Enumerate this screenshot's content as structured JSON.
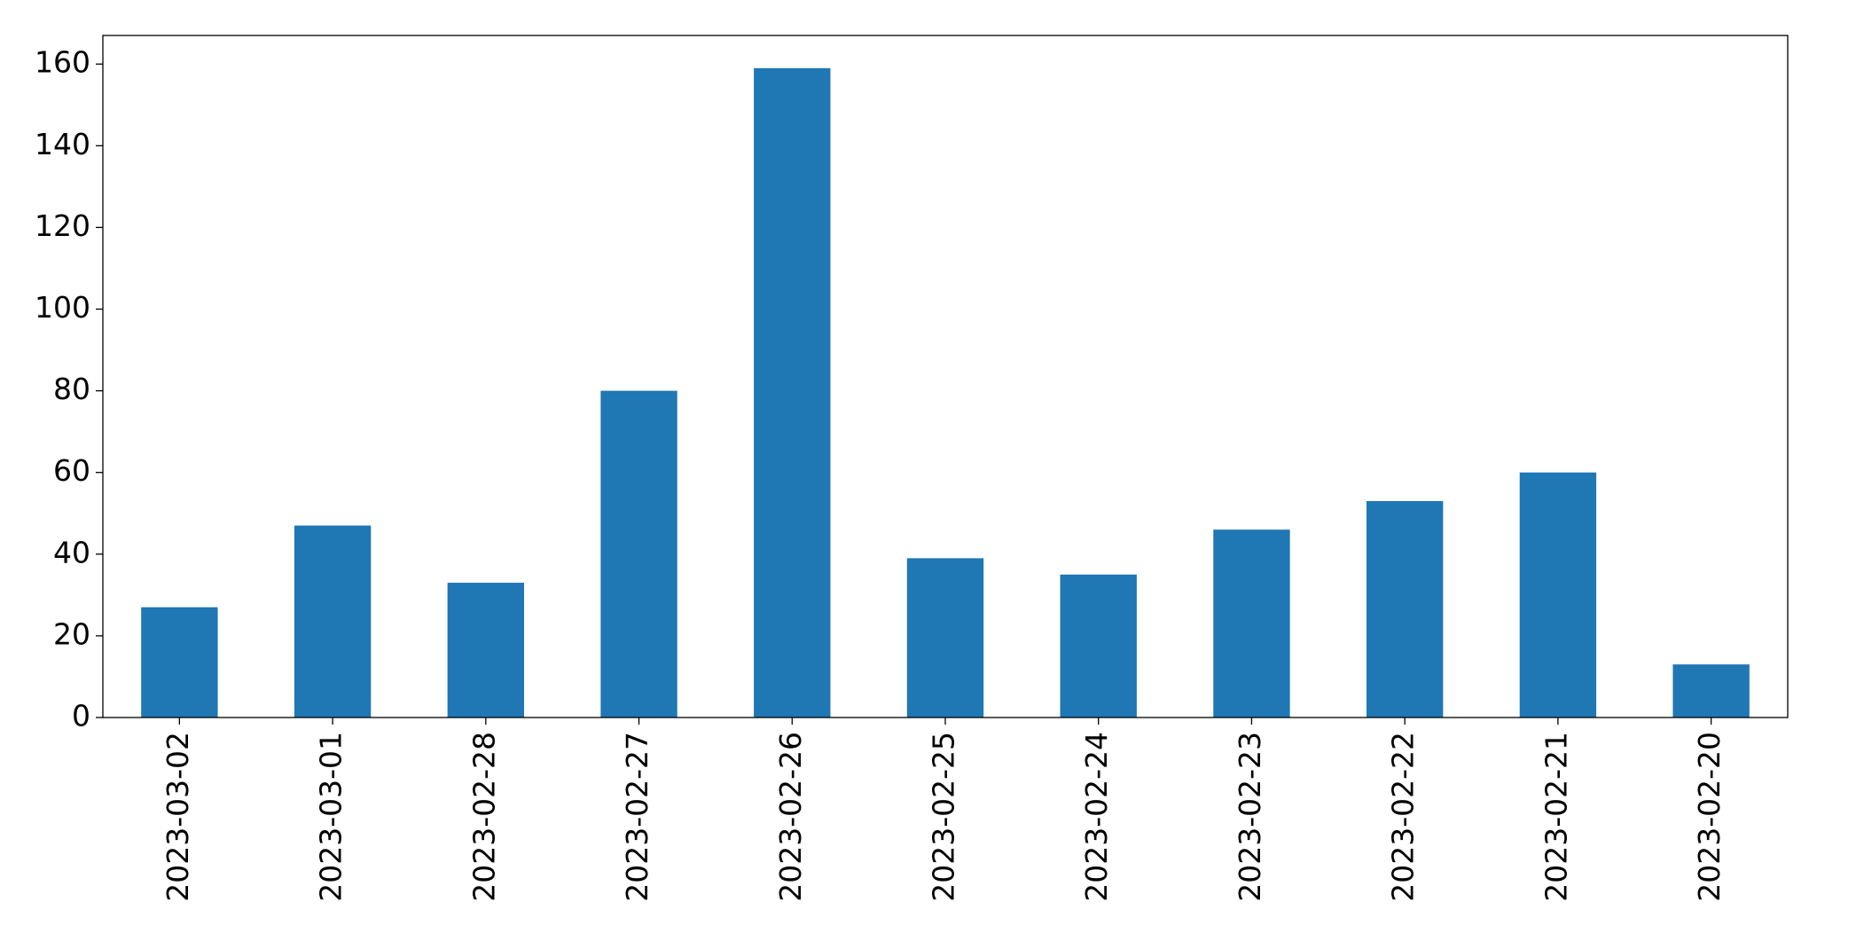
{
  "chart_data": {
    "type": "bar",
    "categories": [
      "2023-03-02",
      "2023-03-01",
      "2023-02-28",
      "2023-02-27",
      "2023-02-26",
      "2023-02-25",
      "2023-02-24",
      "2023-02-23",
      "2023-02-22",
      "2023-02-21",
      "2023-02-20"
    ],
    "values": [
      27,
      47,
      33,
      80,
      159,
      39,
      35,
      46,
      53,
      60,
      13
    ],
    "color": "#1f77b4",
    "ylim": [
      0,
      167
    ],
    "yticks": [
      0,
      20,
      40,
      60,
      80,
      100,
      120,
      140,
      160
    ],
    "grid": false
  }
}
